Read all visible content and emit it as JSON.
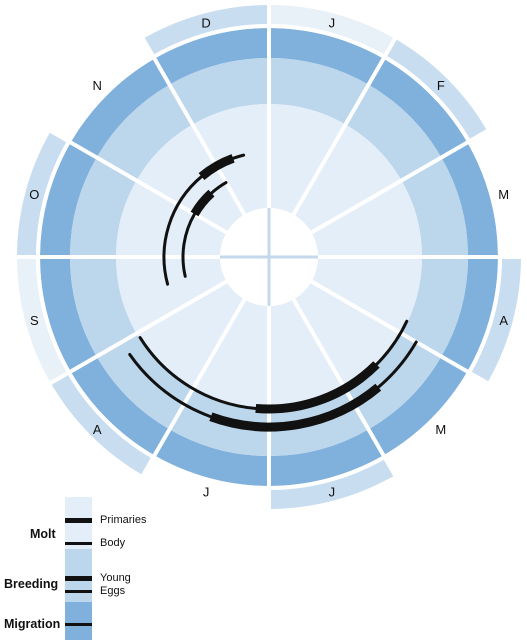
{
  "months": [
    "J",
    "F",
    "M",
    "A",
    "M",
    "J",
    "J",
    "A",
    "S",
    "O",
    "N",
    "D"
  ],
  "rings": {
    "outer_rim_colors": [
      "#e8f0f8",
      "#c8ddef",
      "#ffffff",
      "#c8ddef",
      "#ffffff",
      "#c8ddef",
      "#ffffff",
      "#c8ddef",
      "#e8f0f8",
      "#c8ddef",
      "#ffffff",
      "#c8ddef"
    ],
    "migration_color": "#80b1dc",
    "breeding_color": "#bcd6ec",
    "molt_color": "#e4eef8",
    "center_color": "#ffffff",
    "spoke_color": "#ffffff",
    "arc_color": "#111111"
  },
  "arcs": [
    {
      "name": "molt-primaries-1",
      "thin": [
        [
          255,
          320
        ],
        [
          340,
          346
        ]
      ],
      "thick": [
        [
          320,
          340
        ]
      ]
    },
    {
      "name": "molt-primaries-2",
      "thin": [
        [
          257,
          300
        ],
        [
          318,
          330
        ]
      ],
      "thick": [
        [
          300,
          318
        ]
      ]
    },
    {
      "name": "breeding-young-1",
      "thin": [
        [
          115,
          135
        ],
        [
          185,
          238
        ]
      ],
      "thick": [
        [
          135,
          185
        ]
      ]
    },
    {
      "name": "breeding-eggs-1",
      "thin": [
        [
          120,
          140
        ],
        [
          200,
          235
        ]
      ],
      "thick": [
        [
          140,
          200
        ]
      ]
    }
  ],
  "legend": {
    "molt_title": "Molt",
    "primaries": "Primaries",
    "body": "Body",
    "breeding_title": "Breeding",
    "young": "Young",
    "eggs": "Eggs",
    "migration_title": "Migration"
  }
}
